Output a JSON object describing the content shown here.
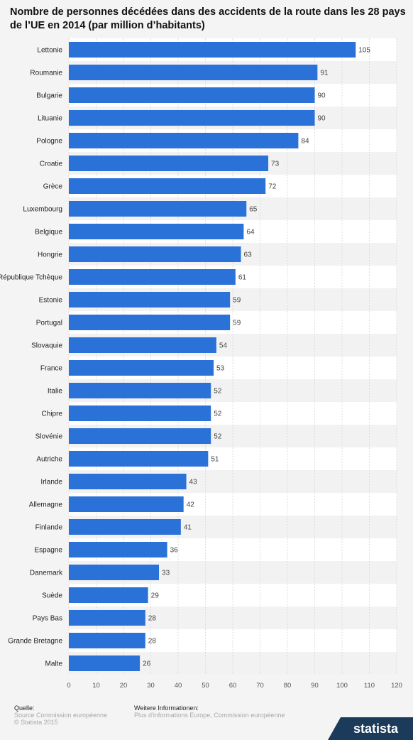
{
  "chart_data": {
    "type": "bar",
    "orientation": "horizontal",
    "title": "Nombre de personnes décédées dans des accidents de la route dans les 28 pays de l’UE en 2014 (par million d’habitants)",
    "categories": [
      "Lettonie",
      "Roumanie",
      "Bulgarie",
      "Lituanie",
      "Pologne",
      "Croatie",
      "Grèce",
      "Luxembourg",
      "Belgique",
      "Hongrie",
      "République Tchèque",
      "Estonie",
      "Portugal",
      "Slovaquie",
      "France",
      "Italie",
      "Chipre",
      "Slovénie",
      "Autriche",
      "Irlande",
      "Allemagne",
      "Finlande",
      "Espagne",
      "Danemark",
      "Suède",
      "Pays Bas",
      "Grande Bretagne",
      "Malte"
    ],
    "values": [
      105,
      91,
      90,
      90,
      84,
      73,
      72,
      65,
      64,
      63,
      61,
      59,
      59,
      54,
      53,
      52,
      52,
      52,
      51,
      43,
      42,
      41,
      36,
      33,
      29,
      28,
      28,
      26
    ],
    "xlim": [
      0,
      120
    ],
    "xticks": [
      0,
      10,
      20,
      30,
      40,
      50,
      60,
      70,
      80,
      90,
      100,
      110,
      120
    ],
    "grid": true,
    "bar_color": "#2a72d8"
  },
  "footer": {
    "source_label": "Quelle:",
    "source_value": "Source Commission européenne",
    "copyright": "© Statista 2015",
    "info_label": "Weitere Informationen:",
    "info_value": "Plus d'informations Europe, Commission européenne"
  },
  "brand": "statista"
}
